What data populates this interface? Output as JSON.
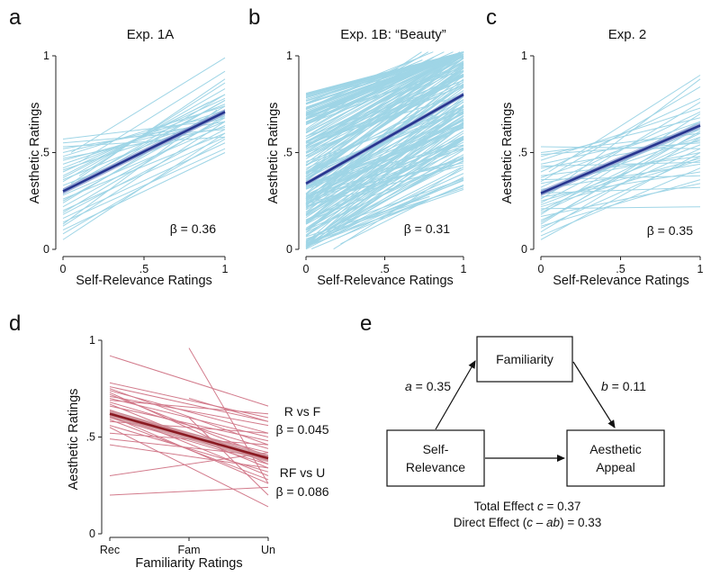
{
  "figure": {
    "panel_letters": [
      "a",
      "b",
      "c",
      "d",
      "e"
    ]
  },
  "colors": {
    "light_line": "#9fd5e6",
    "fit_line": "#27358f",
    "fit_band": "#8fa0cf",
    "red_light": "#d27a8b",
    "red_fit": "#8b1a22",
    "red_band": "#c98a92"
  },
  "chart_data": [
    {
      "panel": "a",
      "type": "line",
      "title": "Exp. 1A",
      "xlabel": "Self-Relevance Ratings",
      "ylabel": "Aesthetic Ratings",
      "xlim": [
        0,
        1
      ],
      "ylim": [
        0,
        1
      ],
      "xticks": [
        {
          "v": 0,
          "label": "0"
        },
        {
          "v": 0.5,
          "label": ".5"
        },
        {
          "v": 1,
          "label": "1"
        }
      ],
      "yticks": [
        {
          "v": 0,
          "label": "0"
        },
        {
          "v": 0.5,
          "label": ".5"
        },
        {
          "v": 1,
          "label": "1"
        }
      ],
      "annotation": "β = 0.36",
      "fit": {
        "x0": 0,
        "y0": 0.3,
        "x1": 1,
        "y1": 0.71,
        "band": 0.015
      },
      "individual_lines": [
        [
          0.0,
          0.55,
          1.0,
          0.62
        ],
        [
          0.0,
          0.52,
          1.0,
          0.66
        ],
        [
          0.0,
          0.5,
          1.0,
          0.7
        ],
        [
          0.0,
          0.48,
          1.0,
          0.74
        ],
        [
          0.0,
          0.46,
          1.0,
          0.68
        ],
        [
          0.0,
          0.44,
          1.0,
          0.72
        ],
        [
          0.0,
          0.42,
          1.0,
          0.75
        ],
        [
          0.0,
          0.4,
          1.0,
          0.78
        ],
        [
          0.0,
          0.38,
          1.0,
          0.8
        ],
        [
          0.0,
          0.36,
          1.0,
          0.7
        ],
        [
          0.0,
          0.35,
          1.0,
          0.83
        ],
        [
          0.0,
          0.33,
          1.0,
          0.66
        ],
        [
          0.0,
          0.31,
          1.0,
          0.77
        ],
        [
          0.0,
          0.3,
          1.0,
          0.72
        ],
        [
          0.0,
          0.28,
          1.0,
          0.64
        ],
        [
          0.0,
          0.26,
          1.0,
          0.6
        ],
        [
          0.0,
          0.24,
          1.0,
          0.74
        ],
        [
          0.0,
          0.22,
          1.0,
          0.68
        ],
        [
          0.0,
          0.2,
          1.0,
          0.58
        ],
        [
          0.0,
          0.18,
          1.0,
          0.62
        ],
        [
          0.0,
          0.16,
          1.0,
          0.55
        ],
        [
          0.0,
          0.14,
          1.0,
          0.52
        ],
        [
          0.0,
          0.12,
          1.0,
          0.66
        ],
        [
          0.0,
          0.1,
          1.0,
          0.5
        ],
        [
          0.0,
          0.08,
          1.0,
          0.57
        ],
        [
          0.05,
          0.5,
          1.0,
          0.99
        ],
        [
          0.1,
          0.45,
          1.0,
          0.92
        ],
        [
          0.1,
          0.38,
          1.0,
          0.86
        ],
        [
          0.05,
          0.34,
          1.0,
          0.88
        ],
        [
          0.2,
          0.4,
          1.0,
          0.8
        ],
        [
          0.0,
          0.57,
          0.9,
          0.66
        ],
        [
          0.0,
          0.53,
          1.0,
          0.58
        ],
        [
          0.0,
          0.47,
          1.0,
          0.63
        ],
        [
          0.0,
          0.41,
          1.0,
          0.69
        ],
        [
          0.0,
          0.37,
          0.9,
          0.76
        ],
        [
          0.0,
          0.29,
          1.0,
          0.77
        ],
        [
          0.0,
          0.25,
          1.0,
          0.71
        ],
        [
          0.0,
          0.19,
          1.0,
          0.69
        ],
        [
          0.0,
          0.13,
          0.95,
          0.72
        ],
        [
          0.0,
          0.05,
          1.0,
          0.6
        ]
      ]
    },
    {
      "panel": "b",
      "type": "line",
      "title": "Exp. 1B: “Beauty”",
      "xlabel": "Self-Relevance Ratings",
      "ylabel": "Aesthetic Ratings",
      "xlim": [
        0,
        1
      ],
      "ylim": [
        0,
        1
      ],
      "xticks": [
        {
          "v": 0,
          "label": "0"
        },
        {
          "v": 0.5,
          "label": ".5"
        },
        {
          "v": 1,
          "label": "1"
        }
      ],
      "yticks": [
        {
          "v": 0,
          "label": "0"
        },
        {
          "v": 0.5,
          "label": ".5"
        },
        {
          "v": 1,
          "label": "1"
        }
      ],
      "annotation": "β = 0.31",
      "fit": {
        "x0": 0,
        "y0": 0.34,
        "x1": 1,
        "y1": 0.8,
        "band": 0.012
      },
      "dense_lines": {
        "count": 240,
        "y0_range": [
          0.0,
          0.82
        ],
        "slope_mean": 0.46,
        "slope_sd": 0.16
      }
    },
    {
      "panel": "c",
      "type": "line",
      "title": "Exp. 2",
      "xlabel": "Self-Relevance Ratings",
      "ylabel": "Aesthetic Ratings",
      "xlim": [
        0,
        1
      ],
      "ylim": [
        0,
        1
      ],
      "xticks": [
        {
          "v": 0,
          "label": "0"
        },
        {
          "v": 0.5,
          "label": ".5"
        },
        {
          "v": 1,
          "label": "1"
        }
      ],
      "yticks": [
        {
          "v": 0,
          "label": "0"
        },
        {
          "v": 0.5,
          "label": ".5"
        },
        {
          "v": 1,
          "label": "1"
        }
      ],
      "annotation": "β = 0.35",
      "fit": {
        "x0": 0,
        "y0": 0.29,
        "x1": 1,
        "y1": 0.64,
        "band": 0.015
      },
      "individual_lines": [
        [
          0.0,
          0.53,
          1.0,
          0.52
        ],
        [
          0.0,
          0.5,
          1.0,
          0.6
        ],
        [
          0.0,
          0.48,
          1.0,
          0.68
        ],
        [
          0.0,
          0.46,
          1.0,
          0.73
        ],
        [
          0.0,
          0.44,
          1.0,
          0.62
        ],
        [
          0.0,
          0.42,
          1.0,
          0.56
        ],
        [
          0.0,
          0.4,
          1.0,
          0.78
        ],
        [
          0.0,
          0.38,
          1.0,
          0.48
        ],
        [
          0.0,
          0.37,
          1.0,
          0.66
        ],
        [
          0.0,
          0.35,
          1.0,
          0.84
        ],
        [
          0.0,
          0.34,
          1.0,
          0.5
        ],
        [
          0.0,
          0.32,
          1.0,
          0.71
        ],
        [
          0.0,
          0.31,
          1.0,
          0.44
        ],
        [
          0.0,
          0.3,
          1.0,
          0.58
        ],
        [
          0.0,
          0.28,
          1.0,
          0.62
        ],
        [
          0.0,
          0.27,
          1.0,
          0.4
        ],
        [
          0.0,
          0.26,
          1.0,
          0.76
        ],
        [
          0.0,
          0.24,
          1.0,
          0.66
        ],
        [
          0.0,
          0.23,
          1.0,
          0.54
        ],
        [
          0.0,
          0.22,
          1.0,
          0.46
        ],
        [
          0.0,
          0.21,
          1.0,
          0.22
        ],
        [
          0.0,
          0.2,
          1.0,
          0.6
        ],
        [
          0.0,
          0.18,
          1.0,
          0.7
        ],
        [
          0.0,
          0.17,
          1.0,
          0.34
        ],
        [
          0.0,
          0.15,
          1.0,
          0.52
        ],
        [
          0.0,
          0.13,
          1.0,
          0.64
        ],
        [
          0.0,
          0.11,
          1.0,
          0.48
        ],
        [
          0.0,
          0.09,
          1.0,
          0.58
        ],
        [
          0.0,
          0.07,
          1.0,
          0.42
        ],
        [
          0.0,
          0.05,
          1.0,
          0.5
        ],
        [
          0.05,
          0.4,
          1.0,
          0.9
        ],
        [
          0.1,
          0.32,
          1.0,
          0.88
        ],
        [
          0.0,
          0.36,
          1.0,
          0.38
        ],
        [
          0.0,
          0.29,
          1.0,
          0.32
        ],
        [
          0.0,
          0.25,
          1.0,
          0.47
        ],
        [
          0.0,
          0.19,
          1.0,
          0.57
        ],
        [
          0.0,
          0.14,
          1.0,
          0.61
        ],
        [
          0.0,
          0.43,
          1.0,
          0.45
        ],
        [
          0.0,
          0.49,
          1.0,
          0.55
        ],
        [
          0.0,
          0.12,
          1.0,
          0.36
        ]
      ]
    },
    {
      "panel": "d",
      "type": "line",
      "title": "",
      "xlabel": "Familiarity Ratings",
      "ylabel": "Aesthetic Ratings",
      "xlim": [
        0,
        2
      ],
      "ylim": [
        0,
        1
      ],
      "xticks": [
        {
          "v": 0,
          "label": "Rec"
        },
        {
          "v": 1,
          "label": "Fam"
        },
        {
          "v": 2,
          "label": "Un"
        }
      ],
      "yticks": [
        {
          "v": 0,
          "label": "0"
        },
        {
          "v": 0.5,
          "label": ".5"
        },
        {
          "v": 1,
          "label": "1"
        }
      ],
      "annotations": [
        {
          "label": "R vs F",
          "value": "β = 0.045"
        },
        {
          "label": "RF vs U",
          "value": "β = 0.086"
        }
      ],
      "fit": {
        "x0": 0,
        "y0": 0.62,
        "x1": 2,
        "y1": 0.39,
        "band": 0.02
      },
      "individual_lines": [
        [
          0.0,
          0.92,
          2.0,
          0.66
        ],
        [
          0.0,
          0.78,
          2.0,
          0.6
        ],
        [
          0.0,
          0.76,
          2.0,
          0.58
        ],
        [
          0.0,
          0.75,
          2.0,
          0.46
        ],
        [
          0.0,
          0.74,
          2.0,
          0.52
        ],
        [
          0.0,
          0.72,
          2.0,
          0.4
        ],
        [
          0.0,
          0.71,
          2.0,
          0.56
        ],
        [
          0.0,
          0.7,
          2.0,
          0.5
        ],
        [
          0.0,
          0.68,
          2.0,
          0.44
        ],
        [
          0.0,
          0.67,
          2.0,
          0.34
        ],
        [
          0.0,
          0.66,
          2.0,
          0.48
        ],
        [
          0.0,
          0.64,
          2.0,
          0.38
        ],
        [
          0.0,
          0.63,
          2.0,
          0.3
        ],
        [
          0.0,
          0.62,
          2.0,
          0.42
        ],
        [
          0.0,
          0.6,
          2.0,
          0.36
        ],
        [
          0.0,
          0.59,
          2.0,
          0.28
        ],
        [
          0.0,
          0.58,
          2.0,
          0.52
        ],
        [
          0.0,
          0.56,
          2.0,
          0.32
        ],
        [
          0.0,
          0.55,
          2.0,
          0.14
        ],
        [
          0.0,
          0.52,
          2.0,
          0.46
        ],
        [
          0.0,
          0.49,
          2.0,
          0.4
        ],
        [
          0.0,
          0.46,
          2.0,
          0.34
        ],
        [
          0.0,
          0.3,
          2.0,
          0.42
        ],
        [
          0.0,
          0.2,
          2.0,
          0.24
        ],
        [
          1.0,
          0.96,
          2.0,
          0.26
        ],
        [
          1.0,
          0.7,
          2.0,
          0.58
        ],
        [
          1.0,
          0.6,
          2.0,
          0.2
        ],
        [
          0.0,
          0.69,
          2.0,
          0.62
        ],
        [
          0.0,
          0.61,
          2.0,
          0.26
        ],
        [
          0.0,
          0.73,
          2.0,
          0.36
        ]
      ]
    }
  ],
  "mediation": {
    "boxes": {
      "familiarity": "Familiarity",
      "self_relevance_line1": "Self-",
      "self_relevance_line2": "Relevance",
      "aesthetic_line1": "Aesthetic",
      "aesthetic_line2": "Appeal"
    },
    "path_a_var": "a",
    "path_a_val": " = 0.35",
    "path_b_var": "b",
    "path_b_val": " = 0.11",
    "total_prefix": "Total Effect ",
    "total_var": "c",
    "total_val": " = 0.37",
    "direct_prefix": "Direct Effect (",
    "direct_var1": "c",
    "direct_mid": " – ",
    "direct_var2": "ab",
    "direct_suffix": ") = 0.33"
  }
}
